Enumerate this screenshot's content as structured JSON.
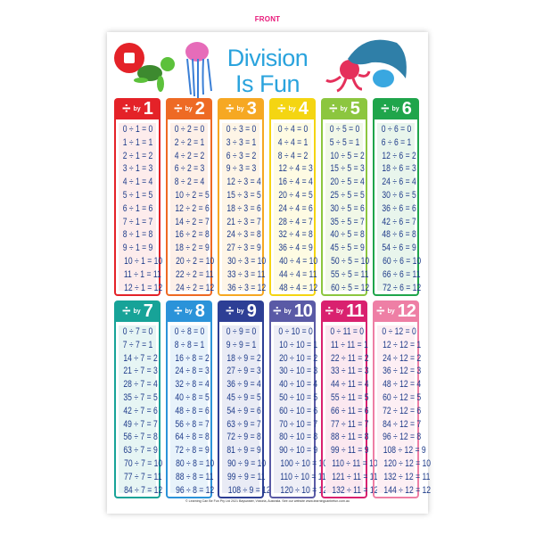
{
  "label": "FRONT",
  "poster": {
    "title_line1": "Division",
    "title_line2": "Is Fun",
    "logo_text": "Learning Can Be Fun",
    "footer": "© Learning Can Be Fun Pty Ltd 2021 Bayswater, Victoria, Australia. See our website www.learningcanbefun.com.au",
    "by_label": "by",
    "divide_symbol": "÷",
    "title_color": "#2aa3dd",
    "text_color": "#1f3c8a"
  },
  "tables": [
    {
      "n": "1",
      "color": "#e42228",
      "tint": "#fdecec",
      "rows": [
        "0 ÷ 1 = 0",
        "1 ÷ 1 = 1",
        "2 ÷ 1 = 2",
        "3 ÷ 1 = 3",
        "4 ÷ 1 = 4",
        "5 ÷ 1 = 5",
        "6 ÷ 1 = 6",
        "7 ÷ 1 = 7",
        "8 ÷ 1 = 8",
        "9 ÷ 1 = 9",
        "10 ÷ 1 = 10",
        "11 ÷ 1 = 11",
        "12 ÷ 1 = 12"
      ]
    },
    {
      "n": "2",
      "color": "#ee6a24",
      "tint": "#fdf0e8",
      "rows": [
        "0 ÷ 2 = 0",
        "2 ÷ 2 = 1",
        "4 ÷ 2 = 2",
        "6 ÷ 2 = 3",
        "8 ÷ 2 = 4",
        "10 ÷ 2 = 5",
        "12 ÷ 2 = 6",
        "14 ÷ 2 = 7",
        "16 ÷ 2 = 8",
        "18 ÷ 2 = 9",
        "20 ÷ 2 = 10",
        "22 ÷ 2 = 11",
        "24 ÷ 2 = 12"
      ]
    },
    {
      "n": "3",
      "color": "#f6a823",
      "tint": "#fef5e6",
      "rows": [
        "0 ÷ 3 = 0",
        "3 ÷ 3 = 1",
        "6 ÷ 3 = 2",
        "9 ÷ 3 = 3",
        "12 ÷ 3 = 4",
        "15 ÷ 3 = 5",
        "18 ÷ 3 = 6",
        "21 ÷ 3 = 7",
        "24 ÷ 3 = 8",
        "27 ÷ 3 = 9",
        "30 ÷ 3 = 10",
        "33 ÷ 3 = 11",
        "36 ÷ 3 = 12"
      ]
    },
    {
      "n": "4",
      "color": "#f4d512",
      "tint": "#fefbe3",
      "rows": [
        "0 ÷ 4 = 0",
        "4 ÷ 4 = 1",
        "8 ÷ 4 = 2",
        "12 ÷ 4 = 3",
        "16 ÷ 4 = 4",
        "20 ÷ 4 = 5",
        "24 ÷ 4 = 6",
        "28 ÷ 4 = 7",
        "32 ÷ 4 = 8",
        "36 ÷ 4 = 9",
        "40 ÷ 4 = 10",
        "44 ÷ 4 = 11",
        "48 ÷ 4 = 12"
      ]
    },
    {
      "n": "5",
      "color": "#8cc63f",
      "tint": "#f1f8e8",
      "rows": [
        "0 ÷ 5 = 0",
        "5 ÷ 5 = 1",
        "10 ÷ 5 = 2",
        "15 ÷ 5 = 3",
        "20 ÷ 5 = 4",
        "25 ÷ 5 = 5",
        "30 ÷ 5 = 6",
        "35 ÷ 5 = 7",
        "40 ÷ 5 = 8",
        "45 ÷ 5 = 9",
        "50 ÷ 5 = 10",
        "55 ÷ 5 = 11",
        "60 ÷ 5 = 12"
      ]
    },
    {
      "n": "6",
      "color": "#1fa54b",
      "tint": "#e8f5ec",
      "rows": [
        "0 ÷ 6 = 0",
        "6 ÷ 6 = 1",
        "12 ÷ 6 = 2",
        "18 ÷ 6 = 3",
        "24 ÷ 6 = 4",
        "30 ÷ 6 = 5",
        "36 ÷ 6 = 6",
        "42 ÷ 6 = 7",
        "48 ÷ 6 = 8",
        "54 ÷ 6 = 9",
        "60 ÷ 6 = 10",
        "66 ÷ 6 = 11",
        "72 ÷ 6 = 12"
      ]
    },
    {
      "n": "7",
      "color": "#17a398",
      "tint": "#e6f5f4",
      "rows": [
        "0 ÷ 7 = 0",
        "7 ÷ 7 = 1",
        "14 ÷ 7 = 2",
        "21 ÷ 7 = 3",
        "28 ÷ 7 = 4",
        "35 ÷ 7 = 5",
        "42 ÷ 7 = 6",
        "49 ÷ 7 = 7",
        "56 ÷ 7 = 8",
        "63 ÷ 7 = 9",
        "70 ÷ 7 = 10",
        "77 ÷ 7 = 11",
        "84 ÷ 7 = 12"
      ]
    },
    {
      "n": "8",
      "color": "#2b93d9",
      "tint": "#e8f3fb",
      "rows": [
        "0 ÷ 8 = 0",
        "8 ÷ 8 = 1",
        "16 ÷ 8 = 2",
        "24 ÷ 8 = 3",
        "32 ÷ 8 = 4",
        "40 ÷ 8 = 5",
        "48 ÷ 8 = 6",
        "56 ÷ 8 = 7",
        "64 ÷ 8 = 8",
        "72 ÷ 8 = 9",
        "80 ÷ 8 = 10",
        "88 ÷ 8 = 11",
        "96 ÷ 8 = 12"
      ]
    },
    {
      "n": "9",
      "color": "#2d3f95",
      "tint": "#e9ebf5",
      "rows": [
        "0 ÷ 9 = 0",
        "9 ÷ 9 = 1",
        "18 ÷ 9 = 2",
        "27 ÷ 9 = 3",
        "36 ÷ 9 = 4",
        "45 ÷ 9 = 5",
        "54 ÷ 9 = 6",
        "63 ÷ 9 = 7",
        "72 ÷ 9 = 8",
        "81 ÷ 9 = 9",
        "90 ÷ 9 = 10",
        "99 ÷ 9 = 11",
        "108 ÷ 9 = 12"
      ]
    },
    {
      "n": "10",
      "color": "#5a5aa6",
      "tint": "#eeeef6",
      "rows": [
        "0 ÷ 10 = 0",
        "10 ÷ 10 = 1",
        "20 ÷ 10 = 2",
        "30 ÷ 10 = 3",
        "40 ÷ 10 = 4",
        "50 ÷ 10 = 5",
        "60 ÷ 10 = 6",
        "70 ÷ 10 = 7",
        "80 ÷ 10 = 8",
        "90 ÷ 10 = 9",
        "100 ÷ 10 = 10",
        "110 ÷ 10 = 11",
        "120 ÷ 10 = 12"
      ]
    },
    {
      "n": "11",
      "color": "#d9216f",
      "tint": "#fbe8f0",
      "rows": [
        "0 ÷ 11 = 0",
        "11 ÷ 11 = 1",
        "22 ÷ 11 = 2",
        "33 ÷ 11 = 3",
        "44 ÷ 11 = 4",
        "55 ÷ 11 = 5",
        "66 ÷ 11 = 6",
        "77 ÷ 11 = 7",
        "88 ÷ 11 = 8",
        "99 ÷ 11 = 9",
        "110 ÷ 11 = 10",
        "121 ÷ 11 = 11",
        "132 ÷ 11 = 12"
      ]
    },
    {
      "n": "12",
      "color": "#ee7fa5",
      "tint": "#fdeff4",
      "rows": [
        "0 ÷ 12 = 0",
        "12 ÷ 12 = 1",
        "24 ÷ 12 = 2",
        "36 ÷ 12 = 3",
        "48 ÷ 12 = 4",
        "60 ÷ 12 = 5",
        "72 ÷ 12 = 6",
        "84 ÷ 12 = 7",
        "96 ÷ 12 = 8",
        "108 ÷ 12 = 9",
        "120 ÷ 12 = 10",
        "132 ÷ 12 = 11",
        "144 ÷ 12 = 12"
      ]
    }
  ]
}
